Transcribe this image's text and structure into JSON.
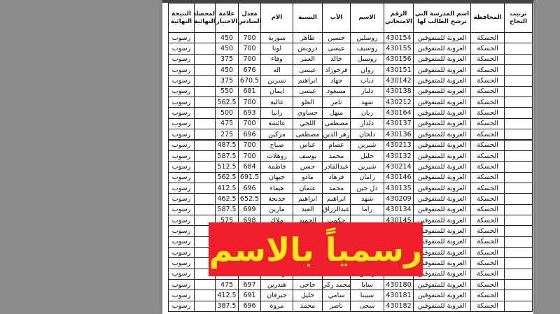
{
  "table": {
    "headers": [
      "ترتيب النجاح",
      "المحافظة",
      "اسم المدرسة التي ترشح الطالب لها",
      "الرقم الامتحاني",
      "الاسم",
      "الأب",
      "النسبة",
      "الام",
      "معدل السادس",
      "علامة الاختبار",
      "المحصلة النهائية",
      "النتيجة النهائية"
    ],
    "rows": [
      {
        "governorate": "الحسكة",
        "school": "العروبة للمتفوقين",
        "exam_no": 430154,
        "name": "روسلين",
        "father": "حسين",
        "surname": "طاهر",
        "mother": "سورية",
        "sixth_avg": 700,
        "test_mark": 450,
        "result": "رسوب"
      },
      {
        "governorate": "الحسكة",
        "school": "العروبة للمتفوقين",
        "exam_no": 430155,
        "name": "روسيف",
        "father": "عيسى",
        "surname": "درويش",
        "mother": "لونا",
        "sixth_avg": 700,
        "test_mark": 450,
        "result": "رسوب"
      },
      {
        "governorate": "الحسكة",
        "school": "العروبة للمتفوقين",
        "exam_no": 430156,
        "name": "روسيل",
        "father": "خالد",
        "surname": "العمر",
        "mother": "وفاء",
        "sixth_avg": 700,
        "test_mark": 375,
        "result": "رسوب"
      },
      {
        "governorate": "الحسكة",
        "school": "العروبة للمتفوقين",
        "exam_no": 430151,
        "name": "روان",
        "father": "فرخوزاد",
        "surname": "عيسى",
        "mother": "اله",
        "sixth_avg": 676,
        "test_mark": 450,
        "result": "رسوب"
      },
      {
        "governorate": "الحسكة",
        "school": "العروبة للمتفوقين",
        "exam_no": 430142,
        "name": "ذياب",
        "father": "جهاد",
        "surname": "ابراهيم",
        "mother": "نسرين",
        "sixth_avg": 670.5,
        "test_mark": 375,
        "result": "رسوب"
      },
      {
        "governorate": "الحسكة",
        "school": "العروبة للمتفوقين",
        "exam_no": 430138,
        "name": "دلبار",
        "father": "مسعود",
        "surname": "عيسى",
        "mother": "ايمان",
        "sixth_avg": 681,
        "test_mark": 550,
        "result": "رسوب"
      },
      {
        "governorate": "الحسكة",
        "school": "العروبة للمتفوقين",
        "exam_no": 430212,
        "name": "شهد",
        "father": "ثامر",
        "surname": "العلو",
        "mother": "غالية",
        "sixth_avg": 700,
        "test_mark": 562.5,
        "result": "رسوب"
      },
      {
        "governorate": "الحسكة",
        "school": "العروبة للمتفوقين",
        "exam_no": 430164,
        "name": "ريان",
        "father": "منهل",
        "surname": "حساوي",
        "mother": "رانيا",
        "sixth_avg": 693,
        "test_mark": 500,
        "result": "رسوب"
      },
      {
        "governorate": "الحسكة",
        "school": "العروبة للمتفوقين",
        "exam_no": 430137,
        "name": "دلدار",
        "father": "مصطفى",
        "surname": "اللجي",
        "mother": "عائشة",
        "sixth_avg": 700,
        "test_mark": 475,
        "result": "رسوب"
      },
      {
        "governorate": "الحسكة",
        "school": "العروبة للمتفوقين",
        "exam_no": 430136,
        "name": "دلجان",
        "father": "زهر الدين",
        "surname": "مصطفى",
        "mother": "مزكين",
        "sixth_avg": 696,
        "test_mark": 275,
        "result": "رسوب"
      },
      {
        "governorate": "الحسكة",
        "school": "العروبة للمتفوقين",
        "exam_no": 430213,
        "name": "شيرين",
        "father": "عصام",
        "surname": "عباس",
        "mother": "صباح",
        "sixth_avg": 700,
        "test_mark": 487.5,
        "result": "رسوب"
      },
      {
        "governorate": "الحسكة",
        "school": "العروبة للمتفوقين",
        "exam_no": 430132,
        "name": "خليل",
        "father": "محمد",
        "surname": "يوسف",
        "mother": "روهلات",
        "sixth_avg": 700,
        "test_mark": 587.5,
        "result": "رسوب"
      },
      {
        "governorate": "الحسكة",
        "school": "العروبة للمتفوقين",
        "exam_no": 430214,
        "name": "شيرين",
        "father": "عبدالقادر",
        "surname": "حسن",
        "mother": "فاطمة",
        "sixth_avg": 684,
        "test_mark": 512.5,
        "result": "رسوب"
      },
      {
        "governorate": "الحسكة",
        "school": "العروبة للمتفوقين",
        "exam_no": 430146,
        "name": "رامان",
        "father": "فرهاد",
        "surname": "مادو",
        "mother": "جيهان",
        "sixth_avg": 691.5,
        "test_mark": 562.5,
        "result": "رسوب"
      },
      {
        "governorate": "الحسكة",
        "school": "العروبة للمتفوقين",
        "exam_no": 430135,
        "name": "دل جين",
        "father": "محمد",
        "surname": "عثمان",
        "mother": "هيفاء",
        "sixth_avg": 696,
        "test_mark": 412.5,
        "result": "رسوب"
      },
      {
        "governorate": "الحسكة",
        "school": "العروبة للمتفوقين",
        "exam_no": 430209,
        "name": "شهد",
        "father": "ابراهيم",
        "surname": "ابراهيم",
        "mother": "خديجة",
        "sixth_avg": 652.5,
        "test_mark": 462.5,
        "result": "رسوب"
      },
      {
        "governorate": "الحسكة",
        "school": "العروبة للمتفوقين",
        "exam_no": 430134,
        "name": "راما",
        "father": "عبدالرزاق",
        "surname": "العبد",
        "mother": "مارين",
        "sixth_avg": 699,
        "test_mark": 587.5,
        "result": "رسوب"
      },
      {
        "governorate": "الحسكة",
        "school": "العروبة للمتفوقين",
        "exam_no": 430145,
        "father": "حكمت",
        "surname": "الحميد",
        "mother": "ملاك",
        "sixth_avg": 698,
        "test_mark": 575,
        "result": "رسوب"
      },
      {
        "governorate": "الحسكة",
        "school": "العروبة للمتفوقين",
        "result": "رسوب"
      },
      {
        "governorate": "الحسكة",
        "school": "العروبة للمتفوقين",
        "result": "رسوب"
      },
      {
        "governorate": "الحسكة",
        "school": "العروبة للمتفوقين",
        "result": "رسوب"
      },
      {
        "governorate": "الحسكة",
        "school": "العروبة للمتفوقين",
        "result": "رسوب"
      },
      {
        "governorate": "الحسكة",
        "school": "العروبة للمتفوقين",
        "exam_no": 430162,
        "name": "رياض",
        "surname": "العبد",
        "mother": "وضحة",
        "sixth_avg": 662.5,
        "test_mark": 582.5,
        "result": "رسوب"
      },
      {
        "governorate": "الحسكة",
        "school": "العروبة للمتفوقين",
        "exam_no": 430180,
        "name": "سايا",
        "father": "محمد زكي",
        "surname": "حاجي",
        "mother": "هندرين",
        "sixth_avg": 697,
        "test_mark": 475,
        "result": "رسوب"
      },
      {
        "governorate": "الحسكة",
        "school": "العروبة للمتفوقين",
        "exam_no": 430181,
        "name": "سيبتا",
        "father": "سامي",
        "surname": "خليل",
        "mother": "جيرفان",
        "sixth_avg": 691,
        "test_mark": 412.5,
        "result": "رسوب"
      },
      {
        "governorate": "الحسكة",
        "school": "العروبة للمتفوقين",
        "exam_no": 430182,
        "name": "سجى",
        "father": "ناصر",
        "surname": "محمد",
        "mother": "مروة",
        "sixth_avg": 696,
        "test_mark": 387.5,
        "result": "رسوب"
      }
    ]
  },
  "banner": {
    "text": "رسمياً بالاسم"
  }
}
